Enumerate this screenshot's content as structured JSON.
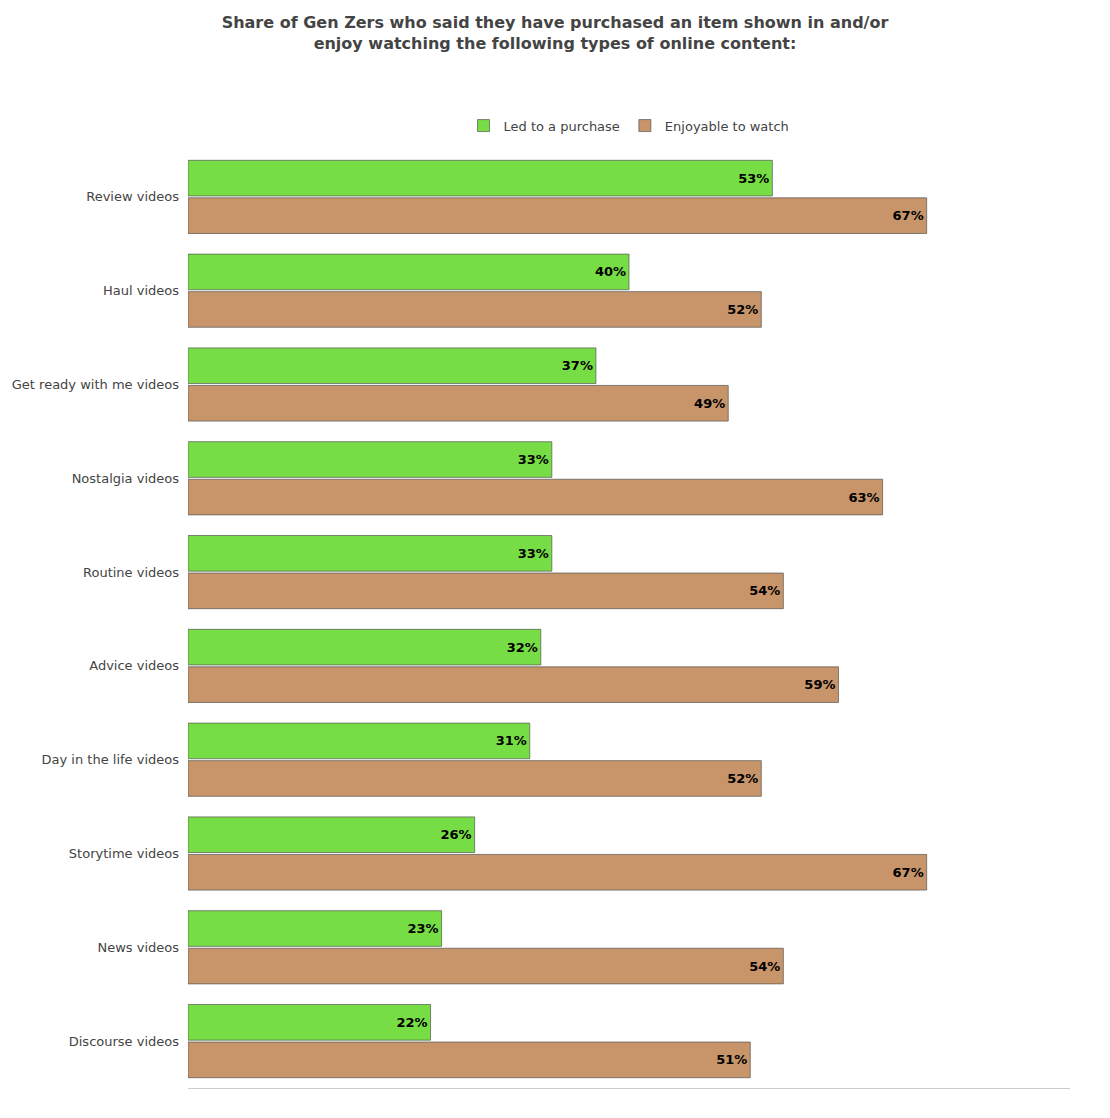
{
  "chart_data": {
    "type": "bar",
    "orientation": "horizontal",
    "title": "Share of Gen Zers who said they have purchased an item shown in and/or\nenjoy watching the following types of online content:",
    "categories": [
      "Review videos",
      "Haul videos",
      "Get ready with me videos",
      "Nostalgia videos",
      "Routine videos",
      "Advice videos",
      "Day in the life videos",
      "Storytime videos",
      "News videos",
      "Discourse videos"
    ],
    "series": [
      {
        "name": "Led to a purchase",
        "color": "#77DD44",
        "values": [
          53,
          40,
          37,
          33,
          33,
          32,
          31,
          26,
          23,
          22
        ],
        "value_labels": [
          "53%",
          "40%",
          "37%",
          "33%",
          "33%",
          "32%",
          "31%",
          "26%",
          "23%",
          "22%"
        ]
      },
      {
        "name": "Enjoyable to watch",
        "color": "#C8956A",
        "values": [
          67,
          52,
          49,
          63,
          54,
          59,
          52,
          67,
          54,
          51
        ],
        "value_labels": [
          "67%",
          "52%",
          "49%",
          "63%",
          "54%",
          "59%",
          "52%",
          "67%",
          "54%",
          "51%"
        ]
      }
    ],
    "xlim": [
      0,
      80
    ],
    "data_labels": true,
    "tick_labels": "y",
    "grid": false,
    "legend": "top"
  }
}
